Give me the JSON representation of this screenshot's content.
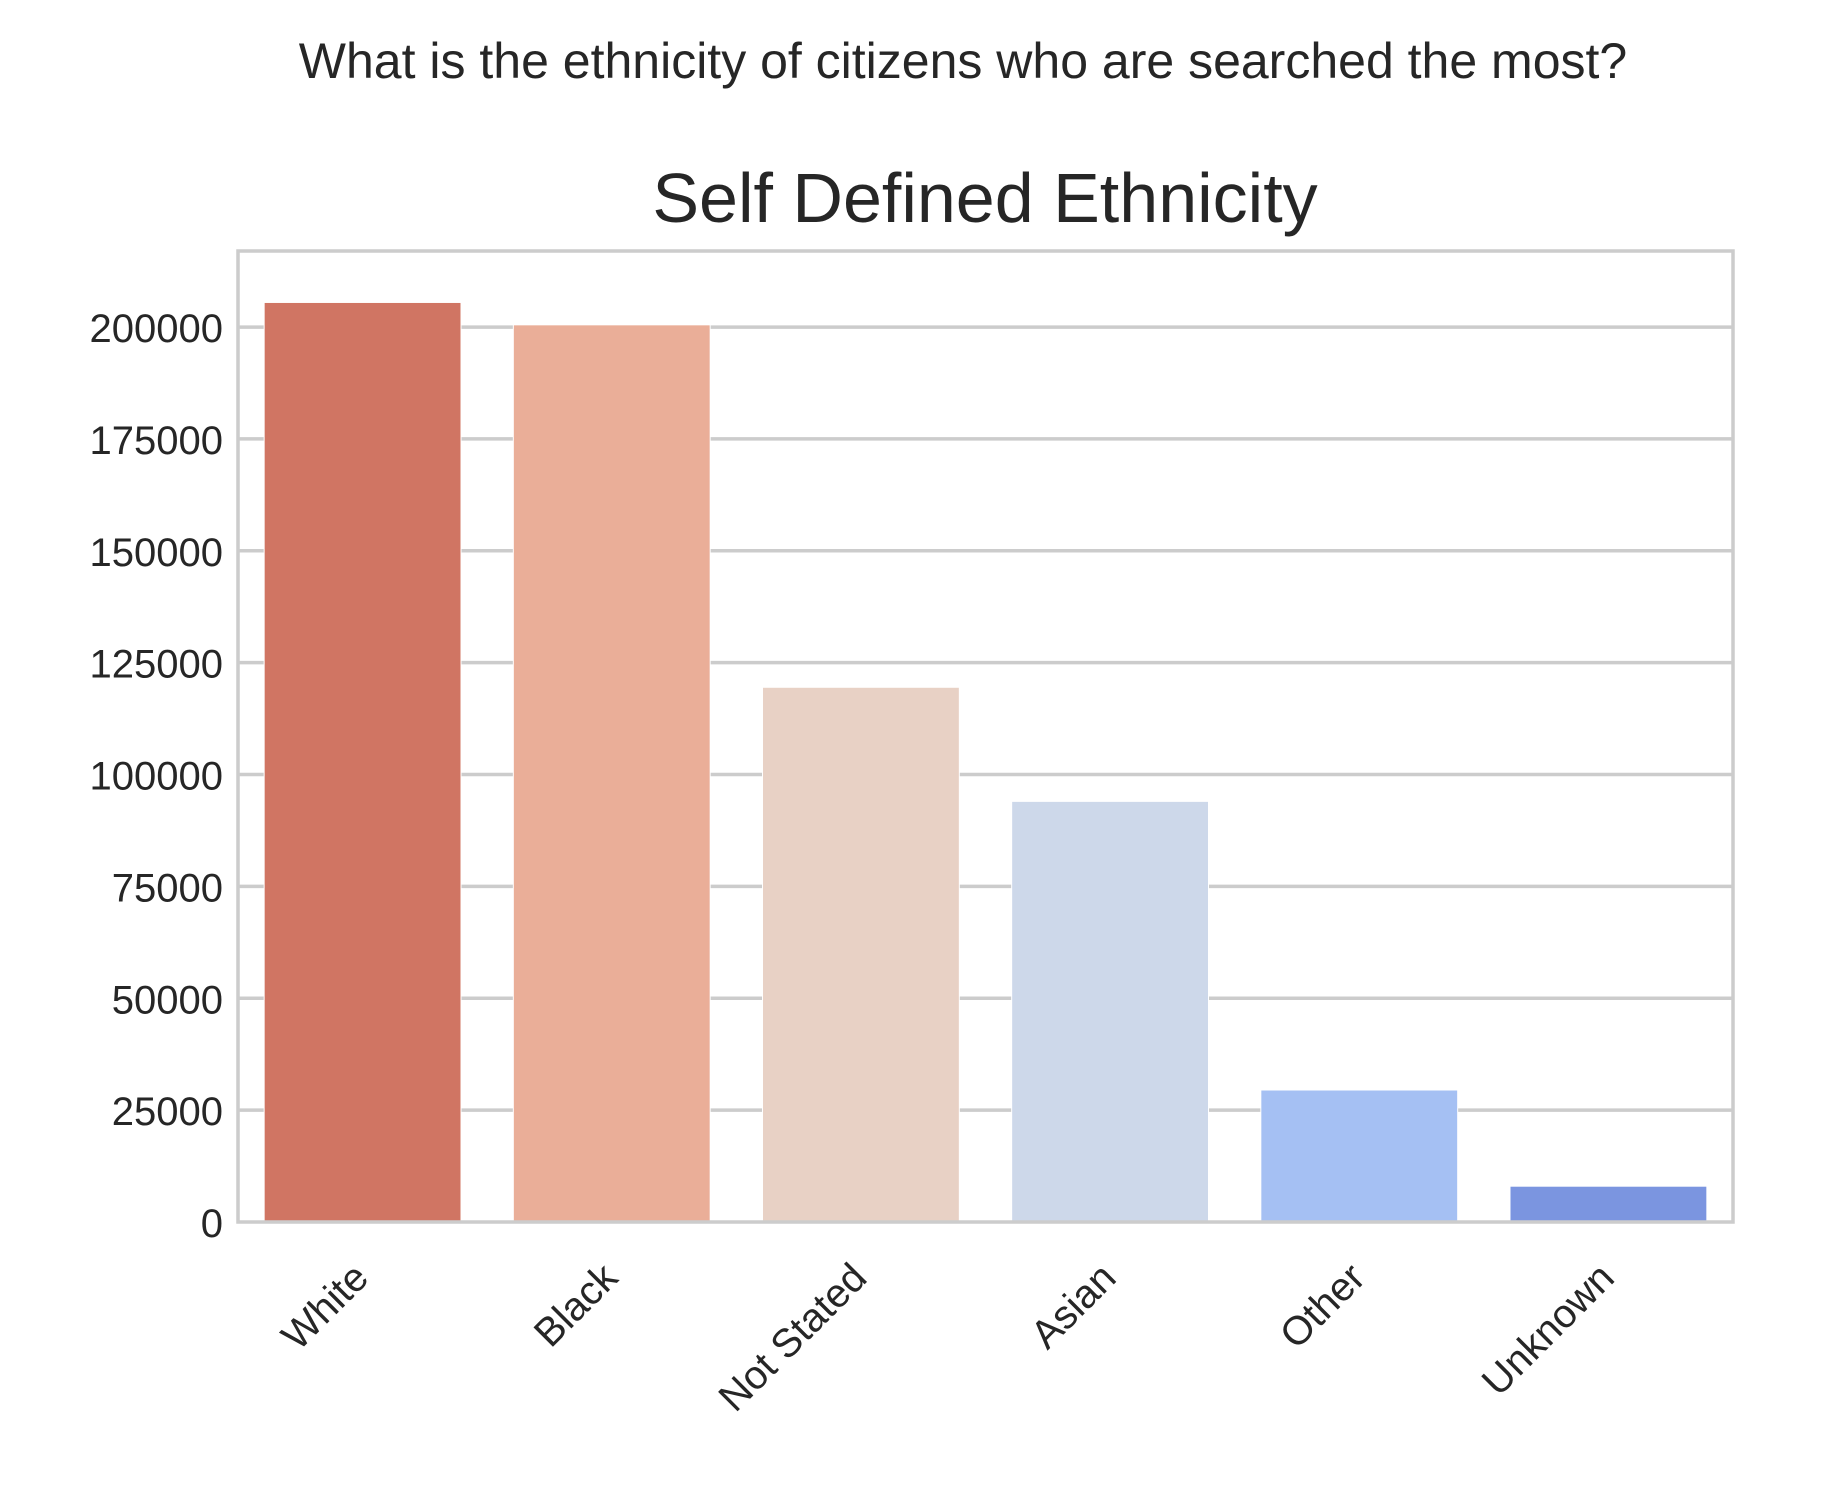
{
  "suptitle": "What is the ethnicity of citizens who are searched the most?",
  "chart_data": {
    "type": "bar",
    "title": "Self Defined Ethnicity",
    "xlabel": "",
    "ylabel": "",
    "categories": [
      "White",
      "Black",
      "Not Stated",
      "Asian",
      "Other",
      "Unknown"
    ],
    "values": [
      205500,
      200500,
      119500,
      94000,
      29500,
      8000
    ],
    "colors": [
      "#d07563",
      "#eaae98",
      "#e8d1c5",
      "#cdd8ea",
      "#a5c0f3",
      "#7b95e0"
    ],
    "ylim": [
      0,
      217000
    ],
    "yticks": [
      0,
      25000,
      50000,
      75000,
      100000,
      125000,
      150000,
      175000,
      200000
    ],
    "grid": "horizontal",
    "legend": "none"
  }
}
